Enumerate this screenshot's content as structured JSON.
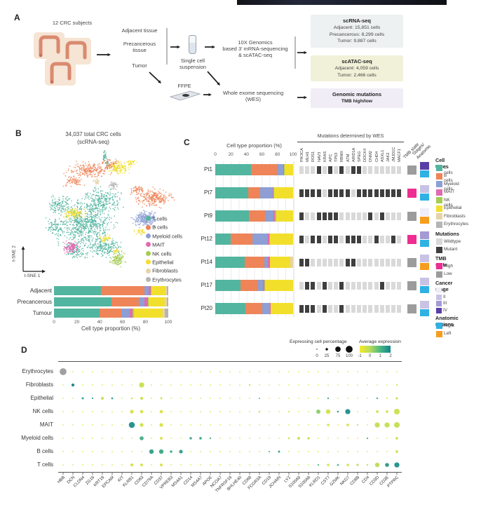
{
  "figure": {
    "panel_labels": [
      "A",
      "B",
      "C",
      "D"
    ]
  },
  "cell_types": [
    {
      "name": "T cells",
      "color": "#52b5a0"
    },
    {
      "name": "B cells",
      "color": "#ee8458"
    },
    {
      "name": "Myeloid cells",
      "color": "#8d9fd4"
    },
    {
      "name": "MAIT",
      "color": "#e06bb1"
    },
    {
      "name": "NK cells",
      "color": "#a5cd52"
    },
    {
      "name": "Epithelial",
      "color": "#f2df2c"
    },
    {
      "name": "Fibroblasts",
      "color": "#e6d3a7"
    },
    {
      "name": "Erythrocytes",
      "color": "#b5b5b5"
    }
  ],
  "panelA": {
    "subjects_label": "12 CRC subjects",
    "tissues": [
      "Adjacent tissue",
      "Precancerous\ntissue",
      "Tumor"
    ],
    "single_cell_label": "Single cell\nsuspension",
    "tenx_label": "10X Genomics\nbased 3' mRNA-sequencing\n& scATAC-seq",
    "ffpe_label": "FFPE",
    "wes_label": "Whole exome sequencing\n(WES)",
    "boxes": [
      {
        "title": "scRNA-seq",
        "lines": [
          "Adjacent: 15,851 cells",
          "Precancerous: 8,299 cells",
          "Tumor: 9,887 cells"
        ],
        "bg": "#edf1f1",
        "bold_lines": false
      },
      {
        "title": "scATAC-seq",
        "lines": [
          "Adjacent: 4,059 cells",
          "Tumor: 2,466 cells"
        ],
        "bg": "#f0f1d8",
        "bold_lines": false
      },
      {
        "title": "Genomic mutations",
        "lines": [
          "TMB high/low"
        ],
        "bg": "#f1edf6",
        "bold_lines": true
      }
    ]
  },
  "chart_data": [
    {
      "type": "scatter",
      "name": "tsne",
      "title": "34,037 total CRC cells",
      "subtitle": "(scRNA-seq)",
      "xlabel": "t-SNE 1",
      "ylabel": "t-SNE 2",
      "legend_position": "right",
      "clusters": [
        {
          "name": "T cells",
          "color": "#52b5a0",
          "blobs": [
            [
              72,
              108,
              44,
              38,
              700
            ],
            [
              34,
              80,
              18,
              14,
              120
            ],
            [
              100,
              142,
              26,
              16,
              180
            ],
            [
              58,
              146,
              16,
              12,
              100
            ],
            [
              30,
              112,
              14,
              16,
              90
            ],
            [
              95,
              75,
              30,
              22,
              250
            ],
            [
              99,
              12,
              3,
              10,
              35
            ],
            [
              103,
              22,
              2,
              6,
              18
            ]
          ]
        },
        {
          "name": "B cells",
          "color": "#ee8458",
          "blobs": [
            [
              78,
              30,
              32,
              12,
              220
            ],
            [
              55,
              46,
              14,
              9,
              70
            ],
            [
              108,
              22,
              15,
              8,
              70
            ],
            [
              170,
              70,
              28,
              14,
              240
            ],
            [
              145,
              58,
              11,
              7,
              50
            ]
          ]
        },
        {
          "name": "Epithelial",
          "color": "#f2df2c",
          "blobs": [
            [
              120,
              27,
              16,
              10,
              130
            ],
            [
              55,
              92,
              18,
              9,
              110
            ],
            [
              100,
              128,
              9,
              6,
              40
            ],
            [
              150,
              118,
              8,
              6,
              35
            ],
            [
              116,
              146,
              6,
              4,
              20
            ],
            [
              137,
              20,
              8,
              5,
              30
            ]
          ]
        },
        {
          "name": "Myeloid cells",
          "color": "#8d9fd4",
          "blobs": [
            [
              158,
              100,
              19,
              13,
              260
            ]
          ]
        },
        {
          "name": "MAIT",
          "color": "#e06bb1",
          "blobs": [
            [
              52,
              141,
              13,
              9,
              110
            ]
          ]
        },
        {
          "name": "NK cells",
          "color": "#a5cd52",
          "blobs": [
            [
              118,
              157,
              12,
              10,
              120
            ]
          ]
        },
        {
          "name": "Erythrocytes",
          "color": "#b5b5b5",
          "blobs": [
            [
              112,
              52,
              7,
              6,
              45
            ]
          ]
        },
        {
          "name": "Fibroblasts",
          "color": "#e6d3a7",
          "blobs": [
            [
              88,
              47,
              6,
              5,
              30
            ]
          ]
        }
      ]
    },
    {
      "type": "bar",
      "name": "tissue_cell_type_proportion",
      "orientation": "horizontal-stacked",
      "categories": [
        "Adjacent",
        "Precancerous",
        "Tumour"
      ],
      "series": [
        {
          "name": "T cells",
          "values": [
            41,
            50,
            40
          ]
        },
        {
          "name": "B cells",
          "values": [
            38,
            24,
            19
          ]
        },
        {
          "name": "Myeloid cells",
          "values": [
            4,
            5,
            7
          ]
        },
        {
          "name": "MAIT",
          "values": [
            1.5,
            3,
            3
          ]
        },
        {
          "name": "NK cells",
          "values": [
            1,
            1,
            1
          ]
        },
        {
          "name": "Epithelial",
          "values": [
            12,
            14,
            25
          ]
        },
        {
          "name": "Fibroblasts",
          "values": [
            1.5,
            1.5,
            2
          ]
        },
        {
          "name": "Erythrocytes",
          "values": [
            1,
            1.5,
            3
          ]
        }
      ],
      "ticks": [
        0,
        20,
        40,
        60,
        80,
        100
      ],
      "xlabel": "Cell type proportion (%)",
      "xlim": [
        0,
        100
      ]
    },
    {
      "type": "table",
      "name": "patient_overview",
      "title": "Cell type proportion (%)",
      "ticks": [
        0,
        20,
        40,
        60,
        80,
        100
      ],
      "mutation_title": "Mutations determined by WES",
      "tmb_col_label": "TMB state",
      "stages_col_label": "Stages/\nAnatomic",
      "genes": [
        "PIK3CA",
        "MLH1",
        "ROS1",
        "NAV3",
        "KRAS",
        "APC",
        "TP53",
        "RBMX",
        "ATM",
        "ARID1A",
        "SPEG",
        "DOCK4",
        "DNM2",
        "CHD4",
        "ASXL1",
        "JAK2",
        "JMJD1C",
        "MACF1"
      ],
      "patients": [
        {
          "id": "Pt1",
          "proportions": [
            46,
            33,
            8,
            1,
            1,
            11,
            0,
            0
          ],
          "mutations": [
            0,
            0,
            0,
            1,
            0,
            1,
            0,
            1,
            0,
            1,
            1,
            0,
            0,
            0,
            0,
            0,
            0,
            0
          ],
          "tmb": "Low",
          "stage": "IV",
          "region": "Right"
        },
        {
          "id": "Pt7",
          "proportions": [
            42,
            16,
            16,
            1,
            1,
            24,
            0,
            0
          ],
          "mutations": [
            1,
            1,
            1,
            1,
            0,
            1,
            1,
            1,
            1,
            0,
            1,
            1,
            1,
            1,
            1,
            1,
            1,
            1
          ],
          "tmb": "High",
          "stage": "II",
          "region": "Right"
        },
        {
          "id": "Pt9",
          "proportions": [
            43,
            21,
            11,
            2,
            1,
            22,
            0,
            0
          ],
          "mutations": [
            1,
            0,
            0,
            1,
            1,
            1,
            1,
            0,
            0,
            0,
            0,
            0,
            1,
            0,
            1,
            0,
            0,
            0
          ],
          "tmb": "Low",
          "stage": "I",
          "region": "Left"
        },
        {
          "id": "Pt12",
          "proportions": [
            20,
            28,
            20,
            1,
            1,
            30,
            0,
            0
          ],
          "mutations": [
            1,
            0,
            1,
            1,
            0,
            1,
            1,
            0,
            1,
            1,
            1,
            0,
            0,
            1,
            0,
            0,
            1,
            0
          ],
          "tmb": "High",
          "stage": "III",
          "region": "Right"
        },
        {
          "id": "Pt14",
          "proportions": [
            38,
            25,
            5,
            2,
            0,
            26,
            4,
            0
          ],
          "mutations": [
            1,
            1,
            0,
            0,
            0,
            0,
            0,
            0,
            1,
            1,
            0,
            0,
            0,
            0,
            0,
            0,
            0,
            0
          ],
          "tmb": "Low",
          "stage": "II",
          "region": "Left"
        },
        {
          "id": "Pt17",
          "proportions": [
            32,
            23,
            6,
            2,
            1,
            36,
            0,
            0
          ],
          "mutations": [
            0,
            1,
            1,
            0,
            1,
            0,
            0,
            1,
            0,
            0,
            0,
            0,
            0,
            0,
            1,
            0,
            0,
            0
          ],
          "tmb": "Low",
          "stage": "II",
          "region": "Right"
        },
        {
          "id": "Pt20",
          "proportions": [
            39,
            21,
            10,
            1,
            0,
            29,
            0,
            0
          ],
          "mutations": [
            1,
            1,
            1,
            0,
            1,
            0,
            0,
            1,
            0,
            0,
            0,
            0,
            0,
            0,
            0,
            0,
            0,
            0
          ],
          "tmb": "Low",
          "stage": "II",
          "region": "Right"
        }
      ]
    },
    {
      "type": "heatmap",
      "name": "marker_gene_dotplot",
      "size_legend": {
        "title": "Expressing cell percentage",
        "ticks": [
          0,
          25,
          75,
          100
        ]
      },
      "color_legend": {
        "title": "Average expression",
        "ticks": [
          -1,
          0,
          1,
          2
        ]
      },
      "rows": [
        "Erythrocytes",
        "Fibroblasts",
        "Epithelial",
        "NK cells",
        "MAIT",
        "Myeloid cells",
        "B cells",
        "T cells"
      ],
      "genes": [
        "HBB",
        "DCN",
        "CLDN4",
        "ZG16",
        "KRT18",
        "EPCAM",
        "KIT",
        "KLRB1",
        "CD63",
        "CD79A",
        "CD37",
        "VPREB3",
        "MS4A1",
        "CD14",
        "MS4A7",
        "APOE",
        "NCOA7",
        "TNFRSF18",
        "BHLHE40",
        "CD68",
        "FCGR3A",
        "CD19",
        "JCHAIN",
        "LYZ",
        "S100A9",
        "S100A8",
        "KLRD1",
        "CST7",
        "GZMK",
        "NKG7",
        "CD8B",
        "CD4",
        "CD3D",
        "CD3E",
        "PTPRC"
      ],
      "base_dot": {
        "pct": 4,
        "expr": -0.6
      },
      "marks": {
        "Erythrocytes": [
          [
            0,
            100,
            "gray"
          ]
        ],
        "Fibroblasts": [
          [
            1,
            35,
            2
          ],
          [
            8,
            70,
            -0.3
          ],
          [
            19,
            12,
            -0.4
          ],
          [
            34,
            10,
            -0.4
          ]
        ],
        "Epithelial": [
          [
            2,
            18,
            1.6
          ],
          [
            3,
            10,
            1.4
          ],
          [
            4,
            30,
            -0.2
          ],
          [
            5,
            16,
            1.5
          ],
          [
            7,
            14,
            -0.4
          ],
          [
            8,
            35,
            -0.3
          ],
          [
            10,
            18,
            -0.5
          ],
          [
            20,
            8,
            1
          ],
          [
            27,
            12,
            1.2
          ],
          [
            32,
            12,
            1.3
          ],
          [
            33,
            8,
            -0.3
          ],
          [
            34,
            22,
            -0.3
          ]
        ],
        "NK cells": [
          [
            7,
            45,
            -0.5
          ],
          [
            8,
            40,
            -0.5
          ],
          [
            10,
            40,
            -0.6
          ],
          [
            20,
            14,
            -0.4
          ],
          [
            23,
            10,
            -0.4
          ],
          [
            26,
            55,
            0.4
          ],
          [
            27,
            60,
            -0.4
          ],
          [
            28,
            14,
            1.5
          ],
          [
            29,
            70,
            1.8
          ],
          [
            32,
            28,
            -0.4
          ],
          [
            33,
            28,
            -0.4
          ],
          [
            34,
            80,
            -0.3
          ]
        ],
        "MAIT": [
          [
            7,
            85,
            1.8
          ],
          [
            8,
            45,
            -0.4
          ],
          [
            10,
            45,
            -0.5
          ],
          [
            27,
            25,
            -0.5
          ],
          [
            29,
            28,
            -0.5
          ],
          [
            30,
            10,
            -0.3
          ],
          [
            32,
            70,
            -0.2
          ],
          [
            33,
            70,
            -0.2
          ],
          [
            34,
            80,
            -0.2
          ]
        ],
        "Myeloid cells": [
          [
            8,
            50,
            1.2
          ],
          [
            10,
            30,
            -0.5
          ],
          [
            13,
            25,
            1.3
          ],
          [
            14,
            25,
            1.5
          ],
          [
            15,
            12,
            1
          ],
          [
            23,
            14,
            -0.3
          ],
          [
            24,
            30,
            -0.3
          ],
          [
            25,
            25,
            -0.3
          ],
          [
            31,
            10,
            1.2
          ],
          [
            34,
            28,
            -0.3
          ]
        ],
        "B cells": [
          [
            9,
            60,
            1.5
          ],
          [
            10,
            60,
            1.3
          ],
          [
            11,
            25,
            1.3
          ],
          [
            12,
            45,
            1.5
          ],
          [
            21,
            8,
            1.2
          ],
          [
            22,
            18,
            1.5
          ],
          [
            34,
            28,
            -0.3
          ]
        ],
        "T cells": [
          [
            7,
            35,
            -0.4
          ],
          [
            8,
            30,
            -0.5
          ],
          [
            10,
            30,
            -0.5
          ],
          [
            26,
            10,
            1
          ],
          [
            27,
            25,
            -0.4
          ],
          [
            28,
            15,
            1.2
          ],
          [
            29,
            25,
            -0.4
          ],
          [
            30,
            22,
            -0.2
          ],
          [
            31,
            12,
            -0.3
          ],
          [
            32,
            60,
            -0.1
          ],
          [
            33,
            50,
            1.6
          ],
          [
            34,
            70,
            1.8
          ]
        ]
      }
    }
  ],
  "panelC_legend": {
    "cell_types_title": "Cell types",
    "mutations_title": "Mutations",
    "mutations": [
      {
        "label": "Wildtype",
        "color": "#d9d9d9"
      },
      {
        "label": "Mutant",
        "color": "#3f3f3f"
      }
    ],
    "tmb_title": "TMB state",
    "tmb": [
      {
        "label": "High",
        "color": "#ee2d92"
      },
      {
        "label": "Low",
        "color": "#9c9c9c"
      }
    ],
    "stage_title": "Cancer stage",
    "stages": [
      {
        "label": "I",
        "color": "#efedf7"
      },
      {
        "label": "II",
        "color": "#c8c3e5"
      },
      {
        "label": "III",
        "color": "#a49bd6"
      },
      {
        "label": "IV",
        "color": "#5a3ea8"
      }
    ],
    "regions_title": "Anatomic regions",
    "regions": [
      {
        "label": "Right",
        "color": "#2fb1e3"
      },
      {
        "label": "Left",
        "color": "#f59e1d"
      }
    ]
  }
}
